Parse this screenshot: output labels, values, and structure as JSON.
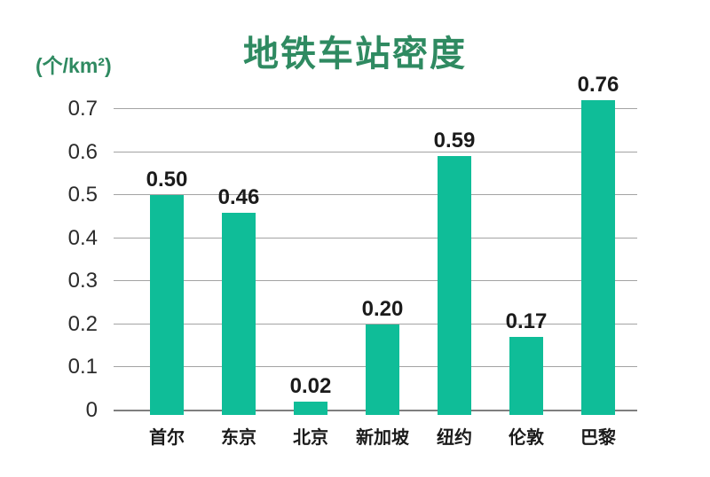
{
  "chart_data": {
    "type": "bar",
    "title": "地铁车站密度",
    "unit": "(个/km²)",
    "categories": [
      "首尔",
      "东京",
      "北京",
      "新加坡",
      "纽约",
      "伦敦",
      "巴黎"
    ],
    "values": [
      0.5,
      0.46,
      0.02,
      0.2,
      0.59,
      0.17,
      0.76
    ],
    "value_labels": [
      "0.50",
      "0.46",
      "0.02",
      "0.20",
      "0.59",
      "0.17",
      "0.76"
    ],
    "ytick_values": [
      0,
      0.1,
      0.2,
      0.3,
      0.4,
      0.5,
      0.6,
      0.7
    ],
    "ytick_labels": [
      "0",
      "0.1",
      "0.2",
      "0.3",
      "0.4",
      "0.5",
      "0.6",
      "0.7"
    ],
    "ylim": [
      0,
      0.7
    ],
    "grid": true,
    "legend": "none",
    "colors": {
      "bar": "#0fbd98",
      "title": "#2f8a61",
      "text": "#1b1b1b",
      "grid": "#a3a3a3",
      "axis": "#7f7f7f",
      "background": "#ffffff"
    }
  }
}
